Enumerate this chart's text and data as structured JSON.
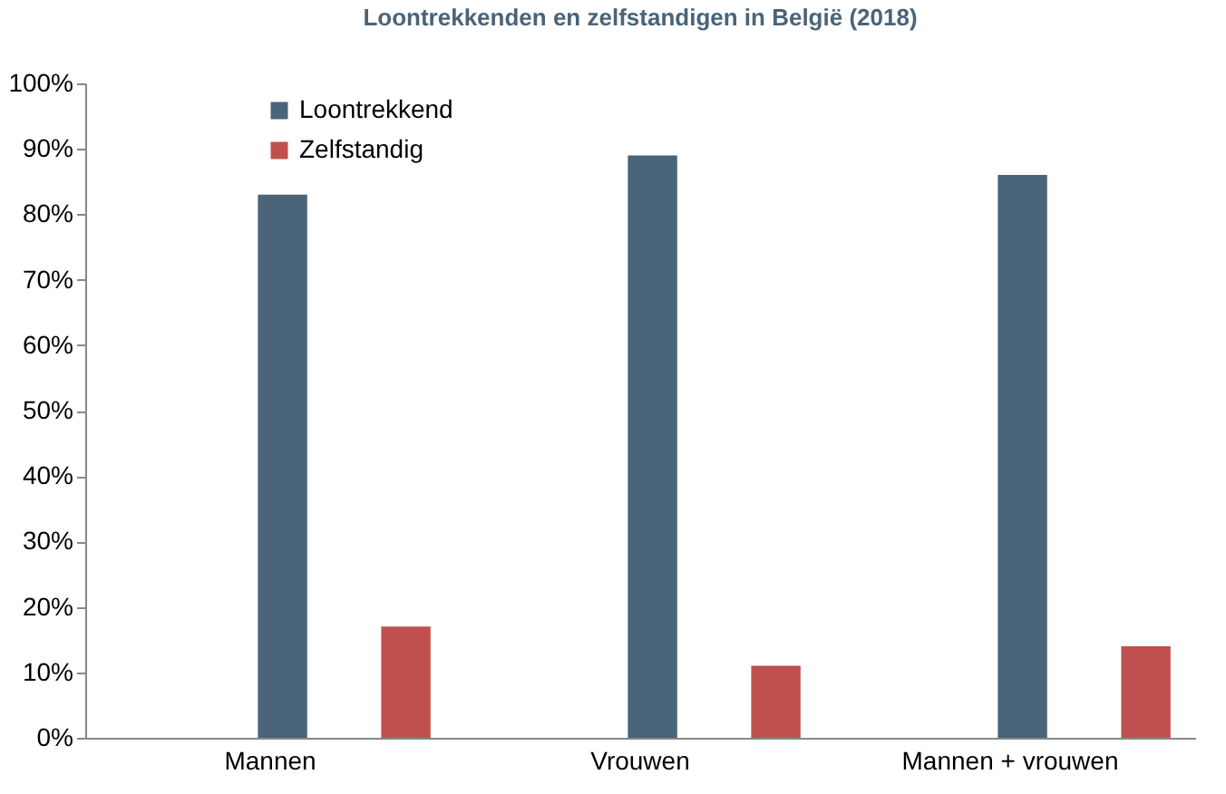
{
  "chart_data": {
    "type": "bar",
    "title": "Loontrekkenden en zelfstandigen in België (2018)",
    "categories": [
      "Mannen",
      "Vrouwen",
      "Mannen + vrouwen"
    ],
    "series": [
      {
        "name": "Loontrekkend",
        "color": "#4a6479",
        "values": [
          83,
          89,
          86
        ]
      },
      {
        "name": "Zelfstandig",
        "color": "#c0504d",
        "values": [
          17,
          11,
          14
        ]
      }
    ],
    "ylim": [
      0,
      100
    ],
    "yticks": [
      {
        "value": 0,
        "label": "0%"
      },
      {
        "value": 10,
        "label": "10%"
      },
      {
        "value": 20,
        "label": "20%"
      },
      {
        "value": 30,
        "label": "30%"
      },
      {
        "value": 40,
        "label": "40%"
      },
      {
        "value": 50,
        "label": "50%"
      },
      {
        "value": 60,
        "label": "60%"
      },
      {
        "value": 70,
        "label": "70%"
      },
      {
        "value": 80,
        "label": "80%"
      },
      {
        "value": 90,
        "label": "90%"
      },
      {
        "value": 100,
        "label": "100%"
      }
    ],
    "grid": false,
    "legend": "top left"
  }
}
